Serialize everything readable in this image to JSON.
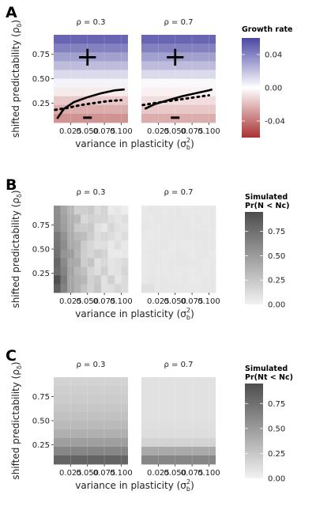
{
  "chart_data": [
    {
      "panel_label": "A",
      "type": "heatmap",
      "facets": [
        "ρ = 0.3",
        "ρ = 0.7"
      ],
      "xlabel": "variance in plasticity (σ",
      "xlabel_sub": "b",
      "xlabel_sup": "2",
      "xlabel_end": ")",
      "ylabel": "shifted predictability (ρ",
      "ylabel_sub": "δ",
      "ylabel_end": ")",
      "x_ticks": [
        "0.025",
        "0.050",
        "0.075",
        "0.100"
      ],
      "x_tick_values": [
        0.025,
        0.05,
        0.075,
        0.1
      ],
      "y_ticks": [
        "0.25",
        "0.50",
        "0.75"
      ],
      "y_tick_values": [
        0.25,
        0.5,
        0.75
      ],
      "xlim": [
        0,
        0.11
      ],
      "ylim": [
        0.05,
        0.95
      ],
      "grid_rows": 10,
      "legend": {
        "title": "Growth rate",
        "ticks": [
          "0.04",
          "0.00",
          "-0.04"
        ],
        "tick_values": [
          0.04,
          0,
          -0.04
        ],
        "range": [
          -0.06,
          0.06
        ],
        "colors": [
          "#a83232",
          "#ffffff",
          "#4a47a3"
        ],
        "placement": "right"
      },
      "annotations": [
        "+",
        "-"
      ],
      "grid": [
        [
          0.05,
          0.041,
          0.031,
          0.022,
          0.012,
          0.004,
          -0.006,
          -0.016,
          -0.024,
          -0.032
        ],
        [
          0.05,
          0.041,
          0.031,
          0.022,
          0.012,
          0.002,
          -0.004,
          -0.01,
          -0.016,
          -0.024
        ]
      ]
    },
    {
      "panel_label": "B",
      "type": "heatmap",
      "facets": [
        "ρ = 0.3",
        "ρ = 0.7"
      ],
      "xlabel": "variance in plasticity (σ",
      "xlabel_sub": "b",
      "xlabel_sup": "2",
      "xlabel_end": ")",
      "ylabel": "shifted predictability (ρ",
      "ylabel_sub": "δ",
      "ylabel_end": ")",
      "x_ticks": [
        "0.025",
        "0.050",
        "0.075",
        "0.100"
      ],
      "x_tick_values": [
        0.025,
        0.05,
        0.075,
        0.1
      ],
      "y_ticks": [
        "0.25",
        "0.50",
        "0.75"
      ],
      "y_tick_values": [
        0.25,
        0.5,
        0.75
      ],
      "xlim": [
        0,
        0.11
      ],
      "ylim": [
        0.05,
        0.95
      ],
      "grid_rows": 10,
      "grid_cols": 11,
      "legend": {
        "title": "Simulated",
        "title2": "Pr(N < Nc)",
        "ticks": [
          "0.75",
          "0.50",
          "0.25",
          "0.00"
        ],
        "tick_values": [
          0.75,
          0.5,
          0.25,
          0
        ],
        "range": [
          0,
          0.95
        ],
        "colors": [
          "#f2f2f2",
          "#4d4d4d"
        ],
        "placement": "right"
      }
    },
    {
      "panel_label": "C",
      "type": "heatmap",
      "facets": [
        "ρ = 0.3",
        "ρ = 0.7"
      ],
      "xlabel": "variance in plasticity (σ",
      "xlabel_sub": "b",
      "xlabel_sup": "2",
      "xlabel_end": ")",
      "ylabel": "shifted predictability (ρ",
      "ylabel_sub": "δ",
      "ylabel_end": ")",
      "x_ticks": [
        "0.025",
        "0.050",
        "0.075",
        "0.100"
      ],
      "x_tick_values": [
        0.025,
        0.05,
        0.075,
        0.1
      ],
      "y_ticks": [
        "0.25",
        "0.50",
        "0.75"
      ],
      "y_tick_values": [
        0.25,
        0.5,
        0.75
      ],
      "xlim": [
        0,
        0.11
      ],
      "ylim": [
        0.05,
        0.95
      ],
      "grid_rows": 10,
      "legend": {
        "title": "Simulated",
        "title2": "Pr(Nt < Nc)",
        "ticks": [
          "0.75",
          "0.50",
          "0.25",
          "0.00"
        ],
        "tick_values": [
          0.75,
          0.5,
          0.25,
          0
        ],
        "range": [
          0,
          0.95
        ],
        "colors": [
          "#f2f2f2",
          "#4d4d4d"
        ],
        "placement": "right"
      },
      "grid": [
        [
          0.18,
          0.2,
          0.22,
          0.25,
          0.28,
          0.32,
          0.38,
          0.48,
          0.62,
          0.82
        ],
        [
          0.1,
          0.1,
          0.1,
          0.1,
          0.1,
          0.11,
          0.12,
          0.18,
          0.42,
          0.62
        ]
      ]
    }
  ]
}
